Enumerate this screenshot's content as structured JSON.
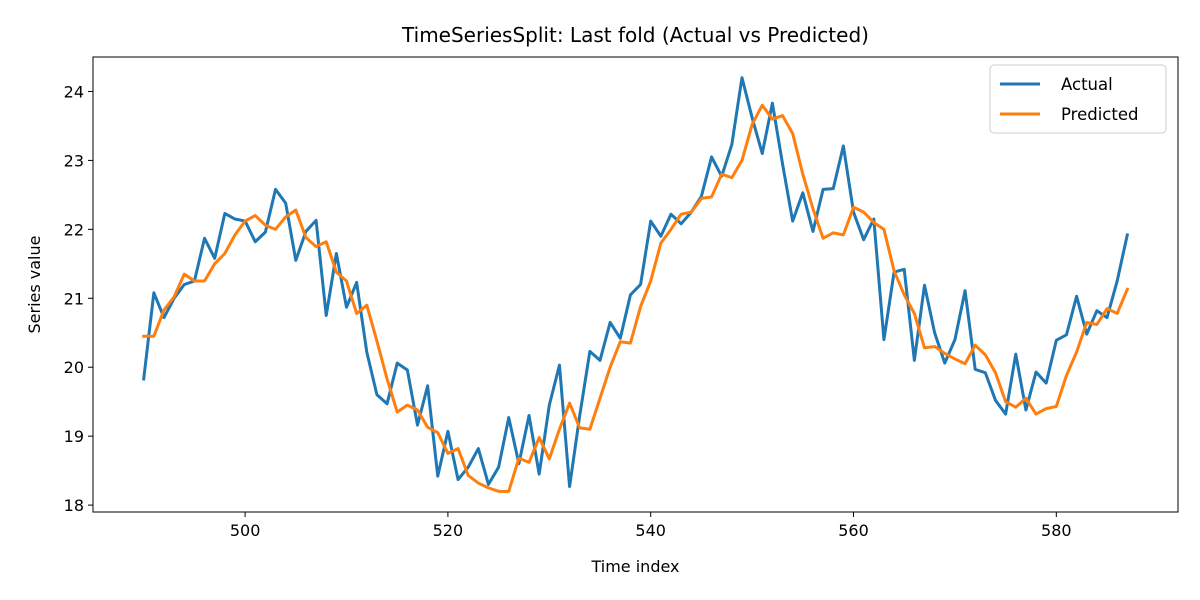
{
  "chart_data": {
    "type": "line",
    "title": "TimeSeriesSplit: Last fold (Actual vs Predicted)",
    "xlabel": "Time index",
    "ylabel": "Series value",
    "xlim": [
      485,
      592
    ],
    "ylim": [
      17.9,
      24.5
    ],
    "xticks": [
      500,
      520,
      540,
      560,
      580
    ],
    "yticks": [
      18,
      19,
      20,
      21,
      22,
      23,
      24
    ],
    "grid": false,
    "legend_position": "upper right",
    "x": [
      490,
      491,
      492,
      493,
      494,
      495,
      496,
      497,
      498,
      499,
      500,
      501,
      502,
      503,
      504,
      505,
      506,
      507,
      508,
      509,
      510,
      511,
      512,
      513,
      514,
      515,
      516,
      517,
      518,
      519,
      520,
      521,
      522,
      523,
      524,
      525,
      526,
      527,
      528,
      529,
      530,
      531,
      532,
      533,
      534,
      535,
      536,
      537,
      538,
      539,
      540,
      541,
      542,
      543,
      544,
      545,
      546,
      547,
      548,
      549,
      550,
      551,
      552,
      553,
      554,
      555,
      556,
      557,
      558,
      559,
      560,
      561,
      562,
      563,
      564,
      565,
      566,
      567,
      568,
      569,
      570,
      571,
      572,
      573,
      574,
      575,
      576,
      577,
      578,
      579,
      580,
      581,
      582,
      583,
      584,
      585,
      586,
      587
    ],
    "series": [
      {
        "name": "Actual",
        "color": "#1f77b4",
        "values": [
          19.83,
          21.08,
          20.72,
          21.0,
          21.2,
          21.25,
          21.87,
          21.58,
          22.23,
          22.15,
          22.12,
          21.82,
          21.96,
          22.58,
          22.38,
          21.55,
          21.97,
          22.13,
          20.75,
          21.65,
          20.87,
          21.23,
          20.22,
          19.6,
          19.47,
          20.06,
          19.96,
          19.16,
          19.73,
          18.42,
          19.07,
          18.37,
          18.55,
          18.82,
          18.3,
          18.55,
          19.27,
          18.6,
          19.3,
          18.45,
          19.45,
          20.03,
          18.27,
          19.3,
          20.23,
          20.1,
          20.65,
          20.42,
          21.05,
          21.2,
          22.12,
          21.9,
          22.22,
          22.08,
          22.25,
          22.48,
          23.05,
          22.77,
          23.23,
          24.2,
          23.62,
          23.1,
          23.83,
          22.95,
          22.12,
          22.53,
          21.97,
          22.58,
          22.59,
          23.21,
          22.25,
          21.85,
          22.15,
          20.4,
          21.38,
          21.42,
          20.1,
          21.19,
          20.5,
          20.06,
          20.4,
          21.11,
          19.97,
          19.92,
          19.52,
          19.32,
          20.19,
          19.38,
          19.93,
          19.77,
          20.39,
          20.47,
          21.03,
          20.48,
          20.82,
          20.72,
          21.25,
          21.92
        ]
      },
      {
        "name": "Predicted",
        "color": "#ff7f0e",
        "values": [
          20.45,
          20.45,
          20.83,
          21.02,
          21.35,
          21.25,
          21.25,
          21.5,
          21.65,
          21.92,
          22.12,
          22.2,
          22.06,
          22.0,
          22.18,
          22.28,
          21.88,
          21.75,
          21.82,
          21.38,
          21.25,
          20.78,
          20.9,
          20.38,
          19.83,
          19.35,
          19.45,
          19.38,
          19.13,
          19.05,
          18.75,
          18.82,
          18.43,
          18.32,
          18.25,
          18.2,
          18.2,
          18.68,
          18.62,
          18.98,
          18.67,
          19.1,
          19.48,
          19.12,
          19.1,
          19.55,
          20.0,
          20.37,
          20.35,
          20.88,
          21.25,
          21.8,
          22.0,
          22.22,
          22.25,
          22.45,
          22.47,
          22.8,
          22.75,
          23.0,
          23.52,
          23.8,
          23.6,
          23.65,
          23.39,
          22.8,
          22.3,
          21.87,
          21.95,
          21.92,
          22.32,
          22.25,
          22.1,
          22.0,
          21.4,
          21.05,
          20.78,
          20.28,
          20.3,
          20.2,
          20.12,
          20.05,
          20.32,
          20.18,
          19.92,
          19.5,
          19.42,
          19.55,
          19.32,
          19.4,
          19.43,
          19.88,
          20.22,
          20.65,
          20.62,
          20.85,
          20.78,
          21.13
        ]
      }
    ]
  }
}
